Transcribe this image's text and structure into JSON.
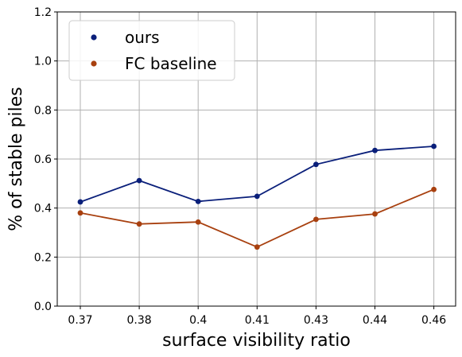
{
  "chart_data": {
    "type": "line",
    "categories": [
      "0.37",
      "0.38",
      "0.4",
      "0.41",
      "0.43",
      "0.44",
      "0.46"
    ],
    "series": [
      {
        "name": "ours",
        "color": "#0a1f7a",
        "values": [
          0.425,
          0.512,
          0.427,
          0.448,
          0.578,
          0.635,
          0.652
        ]
      },
      {
        "name": "FC baseline",
        "color": "#a8400f",
        "values": [
          0.38,
          0.335,
          0.343,
          0.241,
          0.354,
          0.376,
          0.476
        ]
      }
    ],
    "xlabel": "surface visibility ratio",
    "ylabel": "% of stable piles",
    "ylim": [
      0,
      1.2
    ],
    "yticks": [
      "0.0",
      "0.2",
      "0.4",
      "0.6",
      "0.8",
      "1.0",
      "1.2"
    ],
    "grid": true,
    "legend_position": "top-left"
  }
}
